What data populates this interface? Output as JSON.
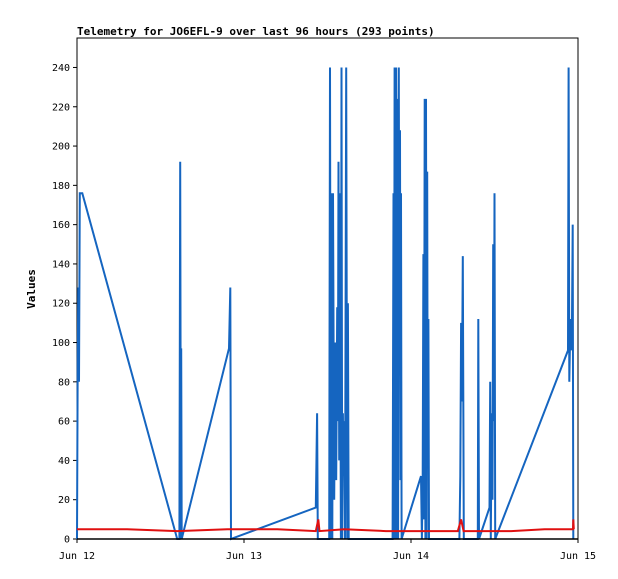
{
  "chart_data": {
    "type": "line",
    "title": "Telemetry for JO6EFL-9 over last 96 hours (293 points)",
    "xlabel": "",
    "ylabel": "Values",
    "ylim": [
      0,
      255
    ],
    "xlim": [
      0,
      3
    ],
    "grid": false,
    "legend": "none",
    "y_ticks": [
      0,
      20,
      40,
      60,
      80,
      100,
      120,
      140,
      160,
      180,
      200,
      220,
      240
    ],
    "x_ticks": [
      {
        "x": 0,
        "label": "Jun 12"
      },
      {
        "x": 1,
        "label": "Jun 13"
      },
      {
        "x": 2,
        "label": "Jun 14"
      },
      {
        "x": 3,
        "label": "Jun 15"
      }
    ],
    "series": [
      {
        "color": "#1565c0",
        "points": [
          [
            0.0,
            0
          ],
          [
            0.004,
            90
          ],
          [
            0.008,
            128
          ],
          [
            0.012,
            80
          ],
          [
            0.017,
            176
          ],
          [
            0.032,
            176
          ],
          [
            0.6,
            0
          ],
          [
            0.613,
            0
          ],
          [
            0.618,
            192
          ],
          [
            0.622,
            0
          ],
          [
            0.624,
            97
          ],
          [
            0.627,
            0
          ],
          [
            0.91,
            97
          ],
          [
            0.918,
            128
          ],
          [
            0.922,
            0
          ],
          [
            1.43,
            16
          ],
          [
            1.438,
            64
          ],
          [
            1.442,
            0
          ],
          [
            1.51,
            0
          ],
          [
            1.515,
            240
          ],
          [
            1.52,
            0
          ],
          [
            1.524,
            176
          ],
          [
            1.529,
            0
          ],
          [
            1.533,
            176
          ],
          [
            1.54,
            20
          ],
          [
            1.546,
            100
          ],
          [
            1.552,
            30
          ],
          [
            1.558,
            118
          ],
          [
            1.562,
            60
          ],
          [
            1.566,
            192
          ],
          [
            1.57,
            40
          ],
          [
            1.574,
            176
          ],
          [
            1.58,
            0
          ],
          [
            1.584,
            240
          ],
          [
            1.588,
            0
          ],
          [
            1.592,
            64
          ],
          [
            1.596,
            32
          ],
          [
            1.6,
            60
          ],
          [
            1.605,
            0
          ],
          [
            1.612,
            240
          ],
          [
            1.618,
            0
          ],
          [
            1.622,
            120
          ],
          [
            1.627,
            0
          ],
          [
            1.89,
            0
          ],
          [
            1.895,
            176
          ],
          [
            1.898,
            0
          ],
          [
            1.902,
            240
          ],
          [
            1.905,
            145
          ],
          [
            1.908,
            0
          ],
          [
            1.911,
            240
          ],
          [
            1.914,
            160
          ],
          [
            1.917,
            0
          ],
          [
            1.92,
            224
          ],
          [
            1.923,
            0
          ],
          [
            1.927,
            240
          ],
          [
            1.93,
            100
          ],
          [
            1.934,
            208
          ],
          [
            1.937,
            30
          ],
          [
            1.94,
            176
          ],
          [
            1.944,
            0
          ],
          [
            2.06,
            32
          ],
          [
            2.065,
            0
          ],
          [
            2.07,
            32
          ],
          [
            2.074,
            145
          ],
          [
            2.078,
            10
          ],
          [
            2.082,
            224
          ],
          [
            2.086,
            0
          ],
          [
            2.09,
            224
          ],
          [
            2.094,
            0
          ],
          [
            2.097,
            187
          ],
          [
            2.1,
            38
          ],
          [
            2.104,
            112
          ],
          [
            2.108,
            0
          ],
          [
            2.29,
            0
          ],
          [
            2.295,
            32
          ],
          [
            2.3,
            110
          ],
          [
            2.305,
            70
          ],
          [
            2.31,
            144
          ],
          [
            2.316,
            0
          ],
          [
            2.4,
            0
          ],
          [
            2.403,
            112
          ],
          [
            2.407,
            0
          ],
          [
            2.47,
            16
          ],
          [
            2.474,
            80
          ],
          [
            2.478,
            0
          ],
          [
            2.483,
            64
          ],
          [
            2.488,
            20
          ],
          [
            2.492,
            150
          ],
          [
            2.497,
            60
          ],
          [
            2.5,
            176
          ],
          [
            2.504,
            0
          ],
          [
            2.94,
            96
          ],
          [
            2.944,
            240
          ],
          [
            2.948,
            80
          ],
          [
            2.952,
            100
          ],
          [
            2.956,
            112
          ],
          [
            2.96,
            96
          ],
          [
            2.964,
            112
          ],
          [
            2.968,
            160
          ],
          [
            2.972,
            0
          ]
        ]
      },
      {
        "color": "#e01010",
        "points": [
          [
            0.0,
            5
          ],
          [
            0.3,
            5
          ],
          [
            0.6,
            4
          ],
          [
            0.9,
            5
          ],
          [
            1.2,
            5
          ],
          [
            1.43,
            4
          ],
          [
            1.445,
            10
          ],
          [
            1.452,
            4
          ],
          [
            1.6,
            5
          ],
          [
            1.85,
            4
          ],
          [
            2.0,
            4
          ],
          [
            2.28,
            4
          ],
          [
            2.3,
            10
          ],
          [
            2.315,
            4
          ],
          [
            2.45,
            4
          ],
          [
            2.6,
            4
          ],
          [
            2.8,
            5
          ],
          [
            2.97,
            5
          ],
          [
            2.972,
            10
          ],
          [
            2.975,
            5
          ]
        ]
      },
      {
        "color": "#000000",
        "points": [
          [
            0.0,
            0
          ],
          [
            3.0,
            0
          ]
        ]
      }
    ]
  }
}
